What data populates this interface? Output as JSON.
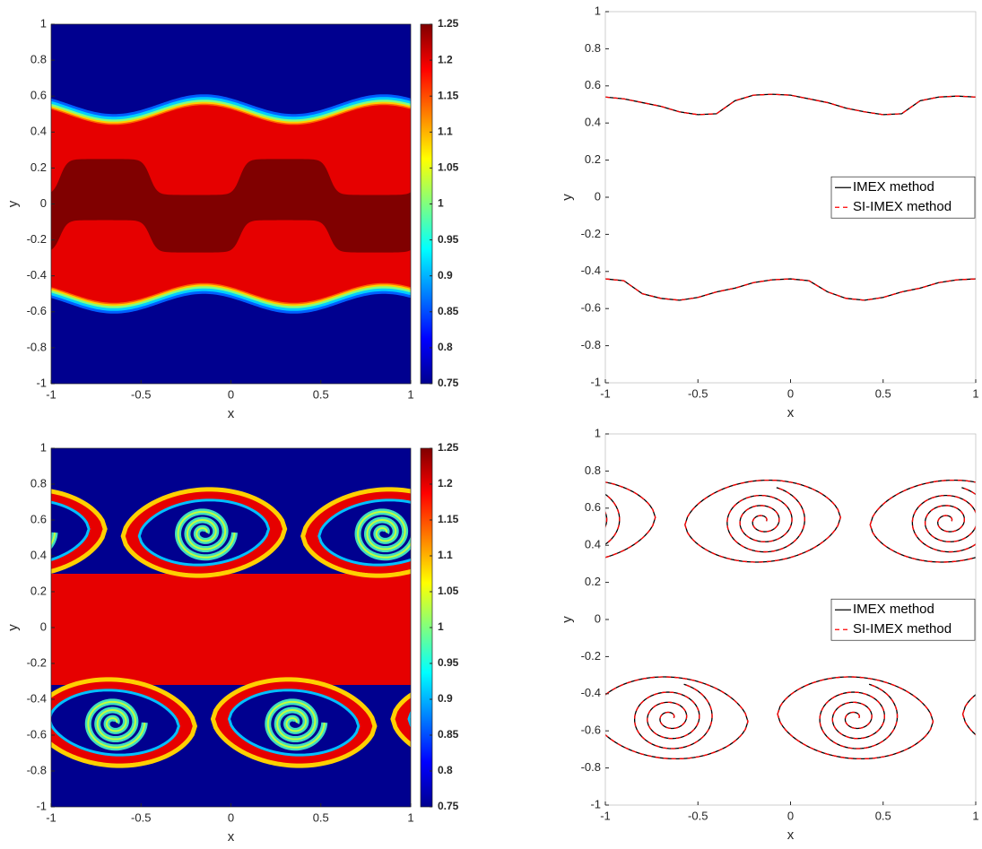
{
  "chart_data": [
    {
      "type": "heatmap",
      "xlabel": "x",
      "ylabel": "y",
      "xlim": [
        -1,
        1
      ],
      "ylim": [
        -1,
        1
      ],
      "xticks": [
        -1,
        -0.5,
        0,
        0.5,
        1
      ],
      "yticks": [
        -1,
        -0.8,
        -0.6,
        -0.4,
        -0.2,
        0,
        0.2,
        0.4,
        0.6,
        0.8,
        1
      ],
      "clim": [
        0.75,
        1.25
      ],
      "cticks": [
        0.75,
        0.8,
        0.85,
        0.9,
        0.95,
        1,
        1.05,
        1.1,
        1.15,
        1.2,
        1.25
      ],
      "colormap": "jet"
    },
    {
      "type": "line",
      "xlabel": "x",
      "ylabel": "y",
      "xlim": [
        -1,
        1
      ],
      "ylim": [
        -1,
        1
      ],
      "xticks": [
        -1,
        -0.5,
        0,
        0.5,
        1
      ],
      "yticks": [
        -1,
        -0.8,
        -0.6,
        -0.4,
        -0.2,
        0,
        0.2,
        0.4,
        0.6,
        0.8,
        1
      ],
      "legend": "east",
      "series": [
        {
          "name": "IMEX method",
          "color": "#000000",
          "dash": false,
          "x": [
            -1,
            -0.9,
            -0.8,
            -0.7,
            -0.6,
            -0.5,
            -0.4,
            -0.3,
            -0.2,
            -0.1,
            0,
            0.1,
            0.2,
            0.3,
            0.4,
            0.5,
            0.6,
            0.7,
            0.8,
            0.9,
            1,
            null,
            -1,
            -0.9,
            -0.8,
            -0.7,
            -0.6,
            -0.5,
            -0.4,
            -0.3,
            -0.2,
            -0.1,
            0,
            0.1,
            0.2,
            0.3,
            0.4,
            0.5,
            0.6,
            0.7,
            0.8,
            0.9,
            1
          ],
          "values": [
            0.54,
            0.53,
            0.51,
            0.49,
            0.46,
            0.445,
            0.45,
            0.52,
            0.55,
            0.555,
            0.55,
            0.53,
            0.51,
            0.48,
            0.46,
            0.445,
            0.45,
            0.52,
            0.54,
            0.545,
            0.54,
            null,
            -0.44,
            -0.45,
            -0.52,
            -0.545,
            -0.555,
            -0.54,
            -0.51,
            -0.49,
            -0.46,
            -0.445,
            -0.44,
            -0.45,
            -0.51,
            -0.545,
            -0.555,
            -0.54,
            -0.51,
            -0.49,
            -0.46,
            -0.445,
            -0.44
          ]
        },
        {
          "name": "SI-IMEX method",
          "color": "#ff0000",
          "dash": true,
          "x": [
            -1,
            -0.9,
            -0.8,
            -0.7,
            -0.6,
            -0.5,
            -0.4,
            -0.3,
            -0.2,
            -0.1,
            0,
            0.1,
            0.2,
            0.3,
            0.4,
            0.5,
            0.6,
            0.7,
            0.8,
            0.9,
            1,
            null,
            -1,
            -0.9,
            -0.8,
            -0.7,
            -0.6,
            -0.5,
            -0.4,
            -0.3,
            -0.2,
            -0.1,
            0,
            0.1,
            0.2,
            0.3,
            0.4,
            0.5,
            0.6,
            0.7,
            0.8,
            0.9,
            1
          ],
          "values": [
            0.54,
            0.53,
            0.51,
            0.49,
            0.46,
            0.445,
            0.45,
            0.52,
            0.55,
            0.555,
            0.55,
            0.53,
            0.51,
            0.48,
            0.46,
            0.445,
            0.45,
            0.52,
            0.54,
            0.545,
            0.54,
            null,
            -0.44,
            -0.45,
            -0.52,
            -0.545,
            -0.555,
            -0.54,
            -0.51,
            -0.49,
            -0.46,
            -0.445,
            -0.44,
            -0.45,
            -0.51,
            -0.545,
            -0.555,
            -0.54,
            -0.51,
            -0.49,
            -0.46,
            -0.445,
            -0.44
          ]
        }
      ]
    },
    {
      "type": "heatmap",
      "xlabel": "x",
      "ylabel": "y",
      "xlim": [
        -1,
        1
      ],
      "ylim": [
        -1,
        1
      ],
      "xticks": [
        -1,
        -0.5,
        0,
        0.5,
        1
      ],
      "yticks": [
        -1,
        -0.8,
        -0.6,
        -0.4,
        -0.2,
        0,
        0.2,
        0.4,
        0.6,
        0.8,
        1
      ],
      "clim": [
        0.75,
        1.25
      ],
      "cticks": [
        0.75,
        0.8,
        0.85,
        0.9,
        0.95,
        1,
        1.05,
        1.1,
        1.15,
        1.2,
        1.25
      ],
      "colormap": "jet"
    },
    {
      "type": "spiral",
      "xlabel": "x",
      "ylabel": "y",
      "xlim": [
        -1,
        1
      ],
      "ylim": [
        -1,
        1
      ],
      "xticks": [
        -1,
        -0.5,
        0,
        0.5,
        1
      ],
      "yticks": [
        -1,
        -0.8,
        -0.6,
        -0.4,
        -0.2,
        0,
        0.2,
        0.4,
        0.6,
        0.8,
        1
      ],
      "legend": "east",
      "series": [
        {
          "name": "IMEX method",
          "color": "#000000",
          "dash": false
        },
        {
          "name": "SI-IMEX method",
          "color": "#ff0000",
          "dash": true
        }
      ]
    }
  ]
}
